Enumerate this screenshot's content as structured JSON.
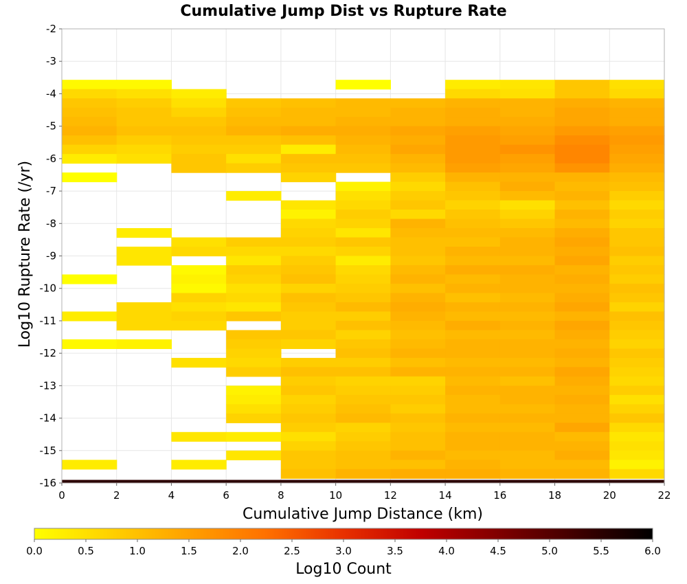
{
  "chart_data": {
    "type": "heatmap",
    "title": "Cumulative Jump Dist vs Rupture Rate",
    "xlabel": "Cumulative Jump Distance (km)",
    "ylabel": "Log10 Rupture Rate (/yr)",
    "xlim": [
      0,
      22
    ],
    "ylim": [
      -16,
      -2
    ],
    "x_ticks": [
      0,
      2,
      4,
      6,
      8,
      10,
      12,
      14,
      16,
      18,
      20,
      22
    ],
    "y_ticks": [
      -2,
      -3,
      -4,
      -5,
      -6,
      -7,
      -8,
      -9,
      -10,
      -11,
      -12,
      -13,
      -14,
      -15,
      -16
    ],
    "x_bin_width": 2,
    "y_bin_height": 0.2857,
    "grid": true,
    "colorbar": {
      "label": "Log10 Count",
      "range": [
        0.0,
        6.0
      ],
      "ticks": [
        "0.0",
        "0.5",
        "1.0",
        "1.5",
        "2.0",
        "2.5",
        "3.0",
        "3.5",
        "4.0",
        "4.5",
        "5.0",
        "5.5",
        "6.0"
      ],
      "colormap": [
        "#ffff00",
        "#ffd000",
        "#ffa000",
        "#ff7000",
        "#e83000",
        "#c00000",
        "#800000",
        "#400000",
        "#000000"
      ]
    },
    "x_bins": [
      1,
      3,
      5,
      7,
      9,
      11,
      13,
      15,
      17,
      19,
      21
    ],
    "y_bins_top_down": [
      -3.714,
      -4.0,
      -4.286,
      -4.571,
      -4.857,
      -5.143,
      -5.429,
      -5.714,
      -6.0,
      -6.286,
      -6.571,
      -6.857,
      -7.143,
      -7.429,
      -7.714,
      -8.0,
      -8.286,
      -8.571,
      -8.857,
      -9.143,
      -9.429,
      -9.714,
      -10.0,
      -10.286,
      -10.571,
      -10.857,
      -11.143,
      -11.429,
      -11.714,
      -12.0,
      -12.286,
      -12.571,
      -12.857,
      -13.143,
      -13.429,
      -13.714,
      -14.0,
      -14.286,
      -14.571,
      -14.857,
      -15.143,
      -15.429,
      -15.714,
      -15.952
    ],
    "log10_counts_by_column": [
      [
        0.1,
        0.6,
        0.9,
        1.0,
        1.1,
        1.2,
        1.0,
        0.7,
        0.3,
        null,
        0.0,
        null,
        null,
        null,
        null,
        null,
        null,
        null,
        null,
        null,
        null,
        0.0,
        null,
        null,
        null,
        0.3,
        null,
        null,
        0.1,
        null,
        null,
        null,
        null,
        null,
        null,
        null,
        null,
        null,
        null,
        null,
        null,
        0.3,
        null,
        5.5
      ],
      [
        0.1,
        0.5,
        0.8,
        0.9,
        0.9,
        1.0,
        0.8,
        0.6,
        0.5,
        null,
        null,
        null,
        null,
        null,
        null,
        null,
        0.3,
        null,
        0.4,
        0.4,
        null,
        null,
        null,
        null,
        0.6,
        0.6,
        0.6,
        null,
        0.2,
        null,
        null,
        null,
        null,
        null,
        null,
        null,
        null,
        null,
        null,
        null,
        null,
        null,
        null,
        5.5
      ],
      [
        null,
        0.3,
        0.5,
        0.7,
        0.9,
        1.0,
        0.9,
        0.8,
        0.9,
        0.9,
        null,
        null,
        null,
        null,
        null,
        null,
        null,
        0.5,
        0.6,
        null,
        0.1,
        0.2,
        0.1,
        0.7,
        0.5,
        0.7,
        0.6,
        null,
        null,
        null,
        0.5,
        null,
        null,
        null,
        null,
        null,
        null,
        null,
        0.4,
        null,
        null,
        0.3,
        null,
        5.5
      ],
      [
        null,
        null,
        0.9,
        1.0,
        1.1,
        1.2,
        0.9,
        0.8,
        0.5,
        0.8,
        null,
        null,
        0.3,
        null,
        null,
        null,
        null,
        0.8,
        0.6,
        0.4,
        0.8,
        0.7,
        0.5,
        0.6,
        0.4,
        0.9,
        null,
        0.9,
        0.8,
        0.7,
        0.6,
        0.8,
        null,
        0.2,
        0.3,
        0.5,
        0.7,
        null,
        0.3,
        null,
        0.4,
        null,
        null,
        5.5
      ],
      [
        null,
        null,
        1.0,
        1.1,
        1.1,
        1.3,
        1.0,
        0.3,
        1.0,
        0.9,
        0.7,
        null,
        null,
        0.4,
        0.2,
        0.6,
        0.7,
        0.8,
        0.6,
        0.8,
        0.9,
        1.0,
        0.7,
        1.0,
        0.9,
        0.8,
        0.8,
        0.9,
        0.7,
        null,
        0.8,
        1.0,
        0.8,
        0.9,
        0.7,
        0.8,
        0.9,
        0.8,
        0.5,
        0.7,
        0.9,
        0.9,
        1.0,
        5.5
      ],
      [
        0.0,
        null,
        1.1,
        1.1,
        1.2,
        1.3,
        1.2,
        1.1,
        1.0,
        0.9,
        null,
        0.2,
        0.5,
        0.6,
        0.8,
        0.7,
        0.4,
        0.9,
        0.7,
        0.3,
        0.6,
        0.7,
        0.8,
        0.9,
        1.1,
        0.8,
        1.0,
        0.7,
        0.9,
        1.0,
        0.8,
        1.0,
        0.7,
        0.8,
        0.9,
        1.0,
        1.1,
        0.7,
        0.8,
        0.9,
        1.0,
        1.0,
        1.2,
        5.5
      ],
      [
        null,
        null,
        1.1,
        1.2,
        1.2,
        1.4,
        1.3,
        1.4,
        1.2,
        1.1,
        0.8,
        0.6,
        0.8,
        0.9,
        0.6,
        1.2,
        1.1,
        1.0,
        1.0,
        0.9,
        1.1,
        1.2,
        1.0,
        1.2,
        1.3,
        1.2,
        1.1,
        1.0,
        1.1,
        1.2,
        1.0,
        1.2,
        0.7,
        0.8,
        0.9,
        0.8,
        1.0,
        0.9,
        1.0,
        1.0,
        1.2,
        1.0,
        1.3,
        5.5
      ],
      [
        0.3,
        0.6,
        1.2,
        1.3,
        1.3,
        1.5,
        1.6,
        1.6,
        1.6,
        1.5,
        1.2,
        1.0,
        0.9,
        0.7,
        0.9,
        1.0,
        1.1,
        1.0,
        1.2,
        1.1,
        1.3,
        1.1,
        1.2,
        1.0,
        1.2,
        1.1,
        1.3,
        1.1,
        1.2,
        1.2,
        1.1,
        1.2,
        1.1,
        1.2,
        1.1,
        1.1,
        1.2,
        1.1,
        1.2,
        1.2,
        1.1,
        1.2,
        1.3,
        5.5
      ],
      [
        0.4,
        0.5,
        1.2,
        1.2,
        1.3,
        1.4,
        1.5,
        1.7,
        1.5,
        1.4,
        1.2,
        1.3,
        1.1,
        0.5,
        0.7,
        0.9,
        1.1,
        1.2,
        1.2,
        1.1,
        1.3,
        1.2,
        1.2,
        1.1,
        1.2,
        1.1,
        1.2,
        1.1,
        1.2,
        1.2,
        1.1,
        1.2,
        1.0,
        1.2,
        1.2,
        1.1,
        1.2,
        1.1,
        1.2,
        1.2,
        1.1,
        1.1,
        1.2,
        5.5
      ],
      [
        0.9,
        0.9,
        1.3,
        1.4,
        1.4,
        1.6,
        1.8,
        1.9,
        1.9,
        1.7,
        1.2,
        1.1,
        1.2,
        1.0,
        1.2,
        1.1,
        1.3,
        1.4,
        1.3,
        1.4,
        1.2,
        1.3,
        1.2,
        1.3,
        1.4,
        1.2,
        1.4,
        1.3,
        1.2,
        1.3,
        1.2,
        1.4,
        1.3,
        1.2,
        1.3,
        1.2,
        1.2,
        1.4,
        1.1,
        1.2,
        1.3,
        1.1,
        1.2,
        5.5
      ],
      [
        0.5,
        0.6,
        1.2,
        1.3,
        1.3,
        1.5,
        1.6,
        1.5,
        1.4,
        1.3,
        1.1,
        1.0,
        0.8,
        0.6,
        0.8,
        0.7,
        0.9,
        0.9,
        1.0,
        0.8,
        0.9,
        0.8,
        1.0,
        0.9,
        0.7,
        1.0,
        0.9,
        0.8,
        0.7,
        0.9,
        0.8,
        0.7,
        0.6,
        0.8,
        0.5,
        0.7,
        0.9,
        0.6,
        0.4,
        0.5,
        0.4,
        0.2,
        0.6,
        5.5
      ]
    ]
  }
}
